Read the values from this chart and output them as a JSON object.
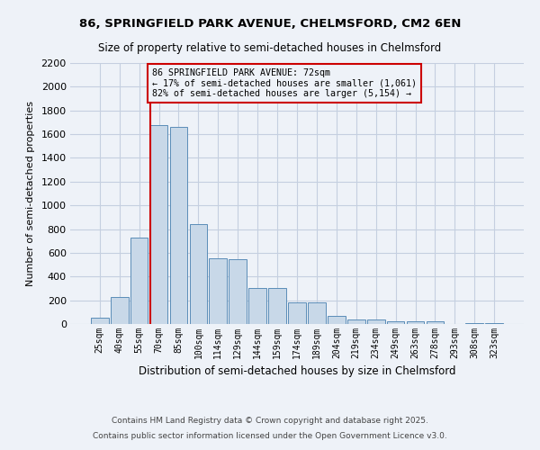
{
  "title_line1": "86, SPRINGFIELD PARK AVENUE, CHELMSFORD, CM2 6EN",
  "title_line2": "Size of property relative to semi-detached houses in Chelmsford",
  "xlabel": "Distribution of semi-detached houses by size in Chelmsford",
  "ylabel": "Number of semi-detached properties",
  "categories": [
    "25sqm",
    "40sqm",
    "55sqm",
    "70sqm",
    "85sqm",
    "100sqm",
    "114sqm",
    "129sqm",
    "144sqm",
    "159sqm",
    "174sqm",
    "189sqm",
    "204sqm",
    "219sqm",
    "234sqm",
    "249sqm",
    "263sqm",
    "278sqm",
    "293sqm",
    "308sqm",
    "323sqm"
  ],
  "values": [
    50,
    225,
    730,
    1680,
    1660,
    845,
    555,
    550,
    300,
    300,
    180,
    180,
    65,
    40,
    35,
    25,
    20,
    20,
    0,
    10,
    5
  ],
  "bar_color": "#c8d8e8",
  "bar_edge_color": "#5b8db8",
  "property_size_bin_index": 3,
  "annotation_text": "86 SPRINGFIELD PARK AVENUE: 72sqm\n← 17% of semi-detached houses are smaller (1,061)\n82% of semi-detached houses are larger (5,154) →",
  "vline_color": "#cc0000",
  "annotation_box_edge_color": "#cc0000",
  "background_color": "#eef2f8",
  "grid_color": "#c5cfe0",
  "ylim": [
    0,
    2200
  ],
  "yticks": [
    0,
    200,
    400,
    600,
    800,
    1000,
    1200,
    1400,
    1600,
    1800,
    2000,
    2200
  ],
  "footer_line1": "Contains HM Land Registry data © Crown copyright and database right 2025.",
  "footer_line2": "Contains public sector information licensed under the Open Government Licence v3.0."
}
